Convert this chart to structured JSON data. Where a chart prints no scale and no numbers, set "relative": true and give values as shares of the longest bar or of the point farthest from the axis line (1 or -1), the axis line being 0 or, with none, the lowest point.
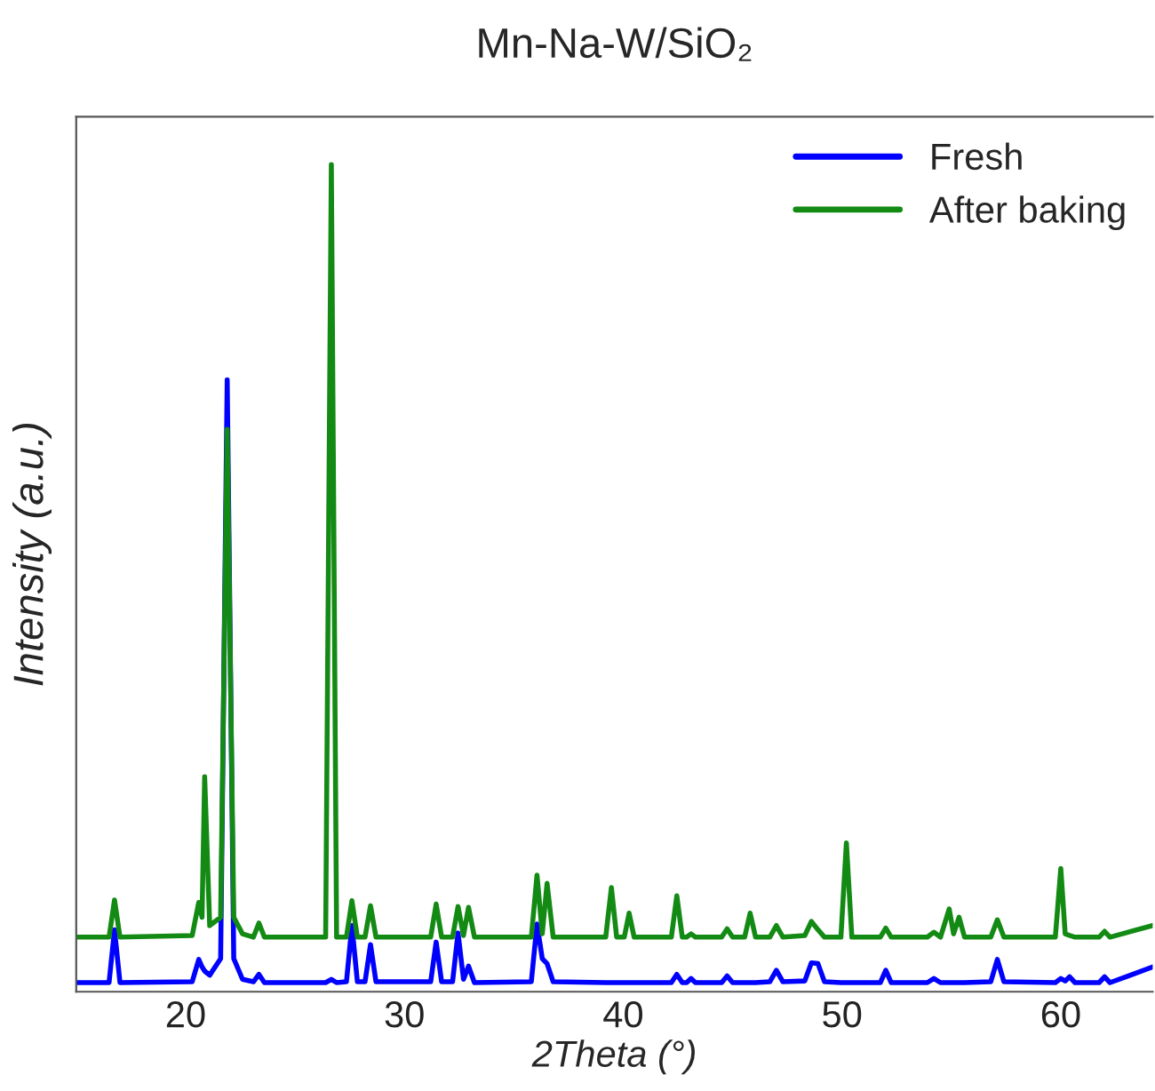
{
  "chart_data": {
    "type": "line",
    "title": "Mn-Na-W/SiO₂",
    "xlabel": "2Theta (°)",
    "ylabel": "Intensity (a.u.)",
    "relative": true,
    "x": [
      15,
      16.5,
      16.75,
      17.0,
      20.3,
      20.6,
      20.75,
      20.87,
      21.1,
      21.6,
      21.9,
      22.2,
      22.6,
      23.1,
      23.35,
      23.6,
      26.4,
      26.66,
      26.9,
      27.35,
      27.6,
      27.85,
      28.2,
      28.45,
      28.7,
      31.2,
      31.45,
      31.7,
      32.2,
      32.45,
      32.7,
      32.93,
      33.2,
      35.8,
      36.06,
      36.3,
      36.52,
      36.8,
      39.2,
      39.46,
      39.7,
      40.05,
      40.27,
      40.5,
      42.2,
      42.45,
      42.7,
      42.9,
      43.1,
      43.3,
      44.5,
      44.75,
      45.0,
      45.55,
      45.8,
      46.05,
      46.7,
      47.0,
      47.3,
      48.3,
      48.6,
      48.9,
      49.2,
      49.95,
      50.2,
      50.45,
      51.75,
      52.0,
      52.25,
      53.9,
      54.2,
      54.5,
      54.9,
      55.1,
      55.35,
      55.6,
      56.8,
      57.1,
      57.4,
      59.75,
      60.0,
      60.2,
      60.4,
      60.65,
      61.75,
      62.0,
      62.25,
      64.2
    ],
    "series": [
      {
        "name": "Fresh",
        "color": "#0000ff",
        "values": [
          0.011,
          0.011,
          0.075,
          0.011,
          0.012,
          0.039,
          0.03,
          0.025,
          0.02,
          0.04,
          0.74,
          0.04,
          0.015,
          0.012,
          0.021,
          0.011,
          0.011,
          0.015,
          0.011,
          0.012,
          0.08,
          0.012,
          0.012,
          0.057,
          0.012,
          0.012,
          0.06,
          0.012,
          0.012,
          0.071,
          0.015,
          0.031,
          0.011,
          0.012,
          0.082,
          0.04,
          0.034,
          0.012,
          0.011,
          0.011,
          0.011,
          0.011,
          0.011,
          0.011,
          0.011,
          0.021,
          0.011,
          0.011,
          0.016,
          0.011,
          0.011,
          0.019,
          0.011,
          0.011,
          0.011,
          0.011,
          0.012,
          0.026,
          0.012,
          0.013,
          0.035,
          0.034,
          0.012,
          0.011,
          0.011,
          0.011,
          0.011,
          0.026,
          0.011,
          0.011,
          0.016,
          0.011,
          0.011,
          0.011,
          0.011,
          0.011,
          0.012,
          0.039,
          0.012,
          0.011,
          0.016,
          0.013,
          0.018,
          0.011,
          0.011,
          0.018,
          0.011,
          0.03
        ]
      },
      {
        "name": "After baking",
        "color": "#138a13",
        "values": [
          0.066,
          0.066,
          0.111,
          0.066,
          0.068,
          0.108,
          0.09,
          0.26,
          0.08,
          0.09,
          0.68,
          0.09,
          0.07,
          0.066,
          0.083,
          0.066,
          0.066,
          1.0,
          0.066,
          0.066,
          0.11,
          0.066,
          0.066,
          0.104,
          0.066,
          0.066,
          0.106,
          0.066,
          0.066,
          0.103,
          0.068,
          0.102,
          0.066,
          0.066,
          0.141,
          0.07,
          0.131,
          0.066,
          0.066,
          0.126,
          0.066,
          0.066,
          0.095,
          0.066,
          0.066,
          0.116,
          0.066,
          0.066,
          0.07,
          0.066,
          0.066,
          0.076,
          0.066,
          0.066,
          0.095,
          0.066,
          0.066,
          0.08,
          0.066,
          0.068,
          0.085,
          0.075,
          0.066,
          0.066,
          0.18,
          0.066,
          0.066,
          0.077,
          0.066,
          0.066,
          0.072,
          0.066,
          0.1,
          0.07,
          0.09,
          0.066,
          0.066,
          0.087,
          0.066,
          0.066,
          0.149,
          0.07,
          0.068,
          0.066,
          0.066,
          0.073,
          0.066,
          0.08
        ]
      }
    ],
    "xlim": [
      15,
      64.2
    ],
    "xticks": [
      20,
      30,
      40,
      50,
      60
    ],
    "legend": "top right",
    "grid": false,
    "marker": "none",
    "line_style": "solid"
  }
}
